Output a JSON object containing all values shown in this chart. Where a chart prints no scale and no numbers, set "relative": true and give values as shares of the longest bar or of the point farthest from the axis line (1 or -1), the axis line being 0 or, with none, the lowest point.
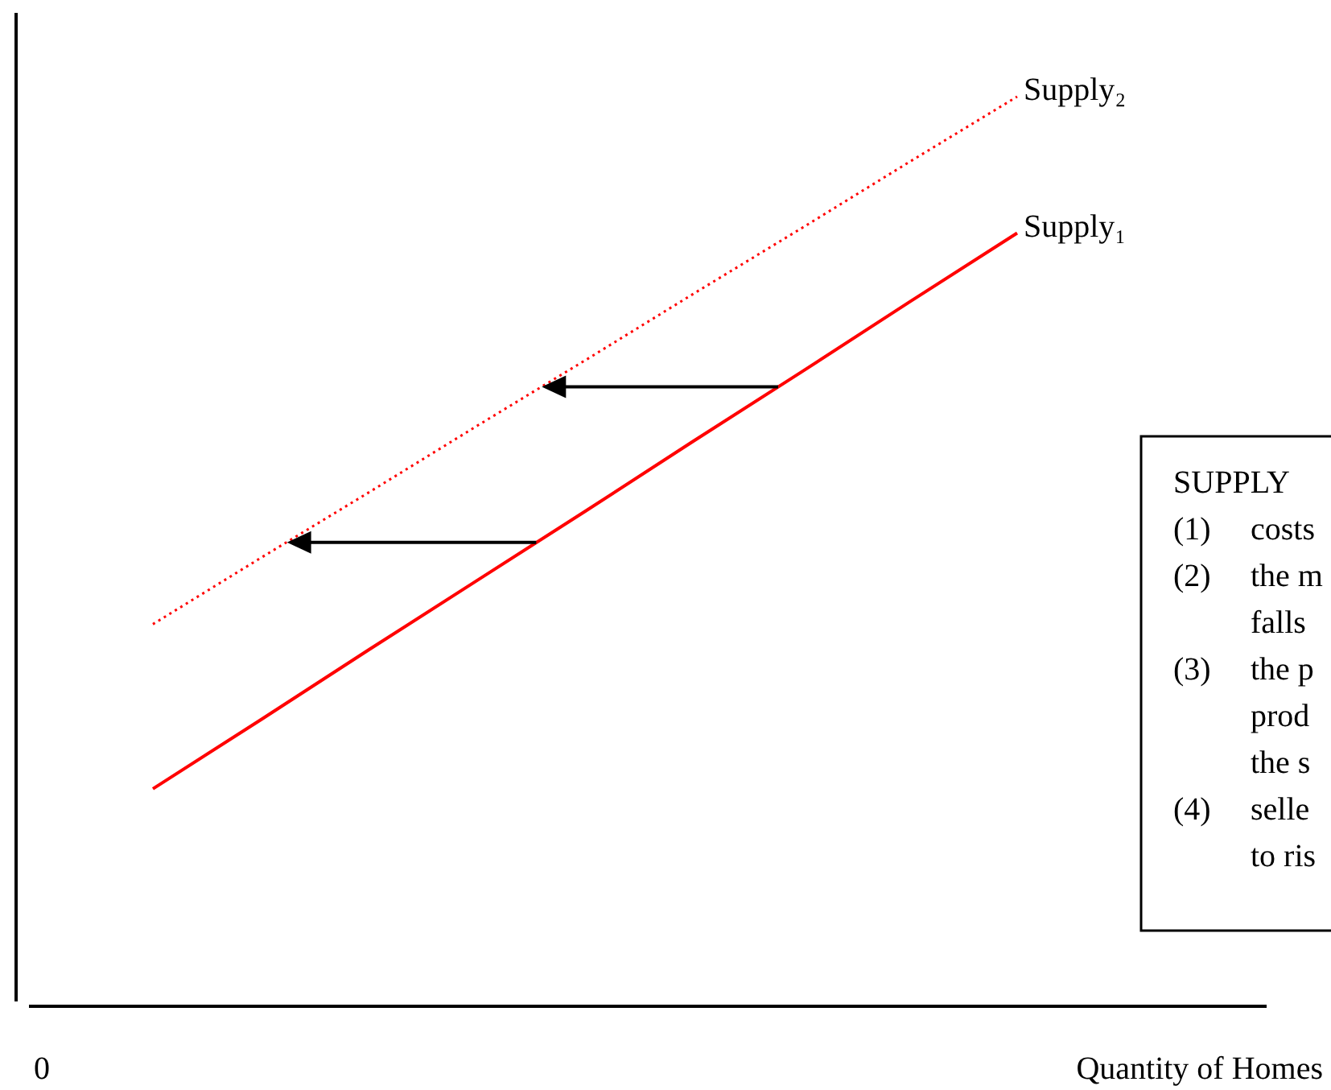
{
  "chart_data": {
    "type": "line",
    "relative": true,
    "xlabel": "Quantity of Homes",
    "marker": "none",
    "categories": [
      null,
      null,
      null,
      null,
      null,
      null,
      null,
      null,
      null
    ],
    "series": [
      {
        "name": "Supply₁",
        "color": "#ff0000",
        "line_style": "solid",
        "values": [
          0.239,
          0.315,
          0.392,
          0.468,
          0.544,
          0.621,
          0.697,
          0.774,
          0.85
        ]
      },
      {
        "name": "Supply₂",
        "color": "#ff0000",
        "line_style": "dotted",
        "values": [
          0.42,
          0.493,
          0.565,
          0.638,
          0.71,
          0.783,
          0.855,
          0.928,
          1.0
        ]
      }
    ],
    "annotations": [
      "0",
      "SUPPLY",
      "(1) costs",
      "(2) the m",
      "falls",
      "(3) the p",
      "prod",
      "the s",
      "(4) selle",
      "to ris"
    ]
  }
}
